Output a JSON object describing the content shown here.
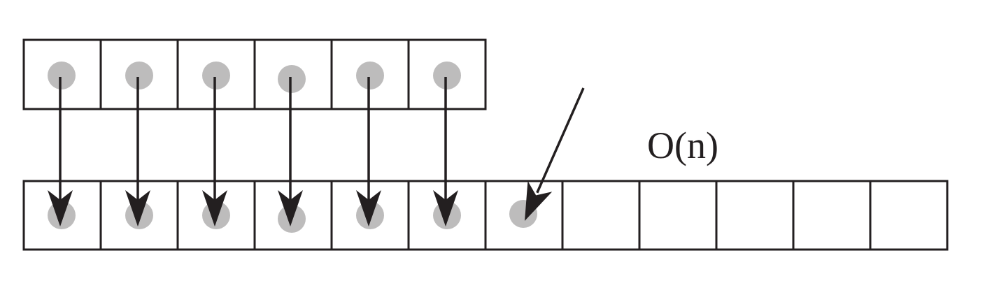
{
  "diagram": {
    "source_array": {
      "cell_count": 6,
      "filled_count": 6
    },
    "destination_array": {
      "cell_count": 12,
      "filled_count": 7,
      "copied_count": 6,
      "inserted_count": 1
    },
    "complexity_label": "O(n)",
    "colors": {
      "stroke": "#231f20",
      "element": "#bdbcbc",
      "background": "#ffffff"
    }
  }
}
